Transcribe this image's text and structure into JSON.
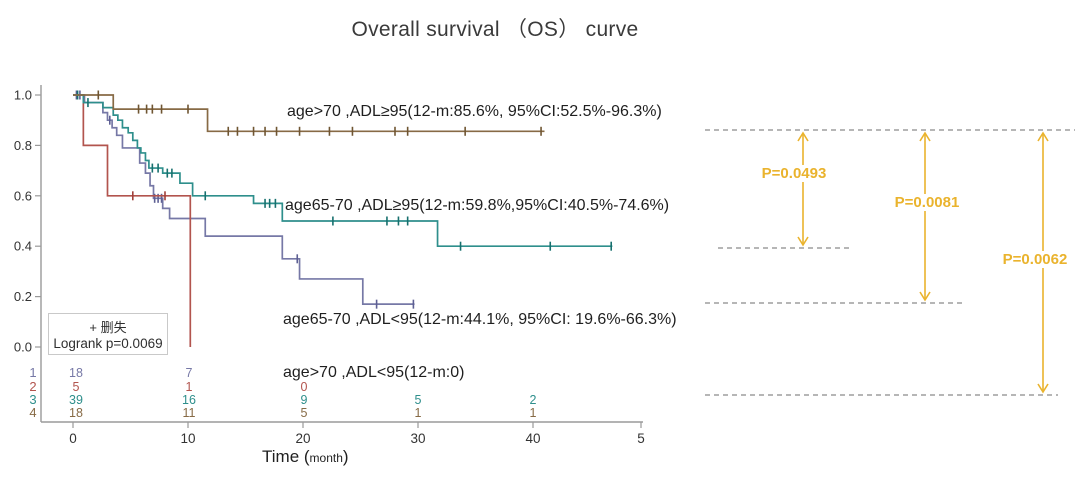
{
  "page": {
    "title": "Overall survival （OS） curve"
  },
  "legend": {
    "censor": "+ 删失",
    "logrank": "Logrank p=0.0069"
  },
  "x_axis": {
    "label_prefix": "Time (",
    "label_unit": "month",
    "label_suffix": ")",
    "tick_labels": [
      "0",
      "10",
      "20",
      "30",
      "40",
      "5"
    ]
  },
  "y_axis": {
    "tick_labels": [
      "1.0",
      "0.8",
      "0.6",
      "0.4",
      "0.2",
      "0.0"
    ],
    "tick_values": [
      1.0,
      0.8,
      0.6,
      0.4,
      0.2,
      0.0
    ]
  },
  "pvalues": [
    {
      "text": "P=0.0493",
      "between_series": [
        3,
        2
      ]
    },
    {
      "text": "P=0.0081",
      "between_series": [
        3,
        0
      ]
    },
    {
      "text": "P=0.0062",
      "between_series": [
        3,
        1
      ]
    }
  ],
  "chart_data": {
    "type": "line",
    "subtype": "kaplan-meier",
    "title": "Overall survival （OS） curve",
    "xlabel": "Time (month)",
    "ylabel": "",
    "xlim": [
      0,
      50
    ],
    "ylim": [
      0.0,
      1.0
    ],
    "grid": false,
    "logrank_p": "0.0069",
    "series": [
      {
        "name": "age65-70 ,ADL<95",
        "label": "age65-70 ,ADL<95(12-m:44.1%, 95%CI: 19.6%-66.3%)",
        "color": "#7678a6",
        "censor_color": "#5d5f93",
        "steps": [
          [
            0,
            1.0
          ],
          [
            1.0,
            0.97
          ],
          [
            2.6,
            0.93
          ],
          [
            3.0,
            0.9
          ],
          [
            3.4,
            0.87
          ],
          [
            3.8,
            0.84
          ],
          [
            4.3,
            0.79
          ],
          [
            5.8,
            0.73
          ],
          [
            6.3,
            0.69
          ],
          [
            6.7,
            0.64
          ],
          [
            7.0,
            0.59
          ],
          [
            7.8,
            0.55
          ],
          [
            8.4,
            0.51
          ],
          [
            11.5,
            0.44
          ],
          [
            18.2,
            0.35
          ],
          [
            19.7,
            0.27
          ],
          [
            25.2,
            0.17
          ],
          [
            29.7,
            0.17
          ]
        ],
        "censors": [
          [
            0.3,
            1.0
          ],
          [
            0.6,
            1.0
          ],
          [
            3.2,
            0.9
          ],
          [
            7.1,
            0.59
          ],
          [
            7.4,
            0.59
          ],
          [
            7.7,
            0.59
          ],
          [
            19.5,
            0.35
          ],
          [
            26.4,
            0.17
          ],
          [
            29.6,
            0.17
          ]
        ],
        "risk_row": {
          "index": "1",
          "counts": [
            "18",
            "7"
          ]
        }
      },
      {
        "name": "age>70 ,ADL<95",
        "label": "age>70 ,ADL<95(12-m:0)",
        "color": "#b2544e",
        "censor_color": "#a1403a",
        "steps": [
          [
            0,
            1.0
          ],
          [
            0.9,
            0.8
          ],
          [
            3.0,
            0.6
          ],
          [
            10.2,
            0.0
          ]
        ],
        "censors": [
          [
            5.2,
            0.6
          ],
          [
            8.0,
            0.6
          ]
        ],
        "risk_row": {
          "index": "2",
          "counts": [
            "5",
            "1",
            "0"
          ]
        }
      },
      {
        "name": "age65-70 ,ADL≥95",
        "label": "age65-70 ,ADL≥95(12-m:59.8%,95%CI:40.5%-74.6%)",
        "color": "#2e8f8c",
        "censor_color": "#17706e",
        "steps": [
          [
            0,
            1.0
          ],
          [
            0.9,
            0.97
          ],
          [
            2.6,
            0.95
          ],
          [
            3.5,
            0.92
          ],
          [
            3.9,
            0.9
          ],
          [
            4.3,
            0.87
          ],
          [
            4.8,
            0.85
          ],
          [
            5.2,
            0.82
          ],
          [
            5.6,
            0.79
          ],
          [
            5.9,
            0.77
          ],
          [
            6.3,
            0.74
          ],
          [
            6.6,
            0.71
          ],
          [
            7.8,
            0.69
          ],
          [
            9.3,
            0.65
          ],
          [
            10.4,
            0.6
          ],
          [
            15.7,
            0.57
          ],
          [
            18.2,
            0.5
          ],
          [
            31.7,
            0.4
          ],
          [
            46.9,
            0.4
          ]
        ],
        "censors": [
          [
            0.4,
            1.0
          ],
          [
            1.3,
            0.97
          ],
          [
            6.9,
            0.71
          ],
          [
            7.4,
            0.71
          ],
          [
            8.2,
            0.69
          ],
          [
            8.6,
            0.69
          ],
          [
            11.5,
            0.6
          ],
          [
            16.7,
            0.57
          ],
          [
            17.1,
            0.57
          ],
          [
            17.6,
            0.57
          ],
          [
            22.6,
            0.5
          ],
          [
            27.3,
            0.5
          ],
          [
            28.3,
            0.5
          ],
          [
            29.1,
            0.5
          ],
          [
            33.7,
            0.4
          ],
          [
            41.5,
            0.4
          ],
          [
            46.8,
            0.4
          ]
        ],
        "risk_row": {
          "index": "3",
          "counts": [
            "39",
            "16",
            "9",
            "5",
            "2"
          ]
        }
      },
      {
        "name": "age>70 ,ADL≥95",
        "label": "age>70 ,ADL≥95(12-m:85.6%, 95%CI:52.5%-96.3%)",
        "color": "#876a45",
        "censor_color": "#6f5532",
        "steps": [
          [
            0,
            1.0
          ],
          [
            3.5,
            0.944
          ],
          [
            11.7,
            0.856
          ],
          [
            41.0,
            0.856
          ]
        ],
        "censors": [
          [
            2.2,
            1.0
          ],
          [
            5.7,
            0.944
          ],
          [
            6.4,
            0.944
          ],
          [
            6.9,
            0.944
          ],
          [
            7.7,
            0.944
          ],
          [
            10.0,
            0.944
          ],
          [
            13.5,
            0.856
          ],
          [
            14.3,
            0.856
          ],
          [
            15.7,
            0.856
          ],
          [
            16.7,
            0.856
          ],
          [
            17.7,
            0.856
          ],
          [
            19.7,
            0.856
          ],
          [
            22.3,
            0.856
          ],
          [
            24.3,
            0.856
          ],
          [
            28.0,
            0.856
          ],
          [
            29.1,
            0.856
          ],
          [
            34.1,
            0.856
          ],
          [
            40.7,
            0.856
          ]
        ],
        "risk_row": {
          "index": "4",
          "counts": [
            "18",
            "11",
            "5",
            "1",
            "1"
          ]
        }
      }
    ]
  },
  "colors": {
    "accent_gold": "#eab32d",
    "dashed_gray": "#8a8a8a",
    "axis_gray": "#9a9a9a",
    "text_dark": "#1f1f1f"
  }
}
